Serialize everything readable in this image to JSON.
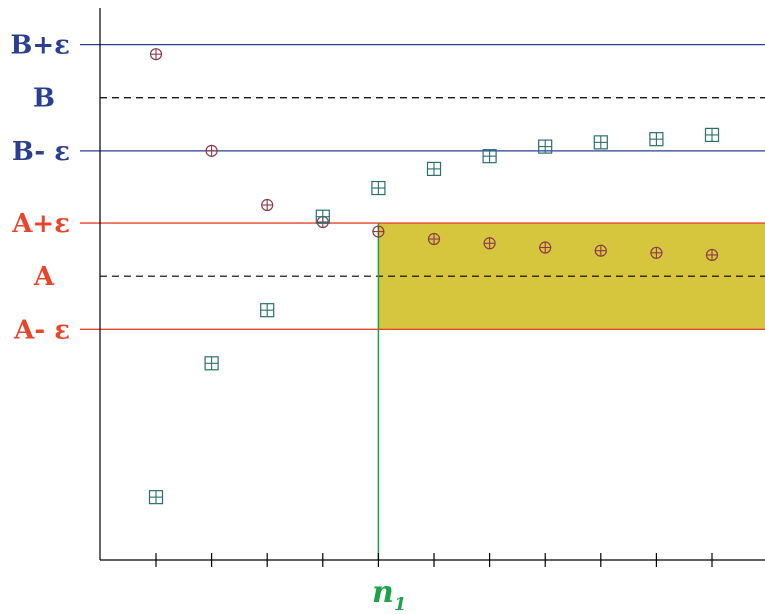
{
  "colors": {
    "blue": "#2a3f91",
    "red": "#e8452a",
    "green": "#1aa34a",
    "band": "#d6c63e",
    "circle_marker": "#8b3a4a",
    "square_marker": "#2a6f6a",
    "axis": "#000000",
    "dashed": "#000000"
  },
  "labels": {
    "b_plus": "B+ε",
    "b": "B",
    "b_minus": "B- ε",
    "a_plus": "A+ε",
    "a": "A",
    "a_minus": "A- ε",
    "n": "n",
    "n_sub": "1"
  },
  "chart_data": {
    "type": "scatter",
    "x": [
      1,
      2,
      3,
      4,
      5,
      6,
      7,
      8,
      9,
      10,
      11
    ],
    "levels": {
      "b_plus": 1.5,
      "b": 1.0,
      "b_minus": 0.5,
      "a_plus": -0.18,
      "a": -0.68,
      "a_minus": -1.18
    },
    "series": [
      {
        "marker": "circle-plus",
        "values": [
          1.41,
          0.5,
          -0.01,
          -0.17,
          -0.26,
          -0.33,
          -0.37,
          -0.41,
          -0.44,
          -0.46,
          -0.48
        ]
      },
      {
        "marker": "square-plus",
        "values": [
          -2.76,
          -1.5,
          -1.0,
          -0.12,
          0.15,
          0.33,
          0.45,
          0.54,
          0.58,
          0.61,
          0.65
        ]
      }
    ],
    "n1_x": 5,
    "ylim": [
      -3.86,
      1.92
    ]
  }
}
